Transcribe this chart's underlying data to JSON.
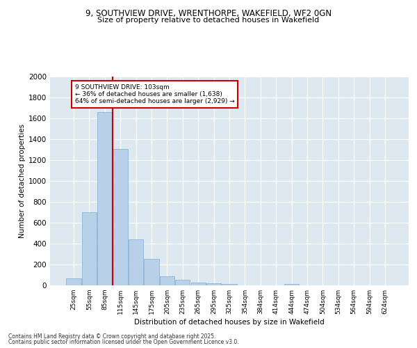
{
  "title_line1": "9, SOUTHVIEW DRIVE, WRENTHORPE, WAKEFIELD, WF2 0GN",
  "title_line2": "Size of property relative to detached houses in Wakefield",
  "xlabel": "Distribution of detached houses by size in Wakefield",
  "ylabel": "Number of detached properties",
  "categories": [
    "25sqm",
    "55sqm",
    "85sqm",
    "115sqm",
    "145sqm",
    "175sqm",
    "205sqm",
    "235sqm",
    "265sqm",
    "295sqm",
    "325sqm",
    "354sqm",
    "384sqm",
    "414sqm",
    "444sqm",
    "474sqm",
    "504sqm",
    "534sqm",
    "564sqm",
    "594sqm",
    "624sqm"
  ],
  "values": [
    65,
    700,
    1660,
    1310,
    440,
    255,
    90,
    55,
    30,
    22,
    15,
    0,
    0,
    0,
    12,
    0,
    0,
    0,
    0,
    0,
    0
  ],
  "bar_color": "#b8d0e8",
  "bar_edge_color": "#7aadd4",
  "annotation_text": "9 SOUTHVIEW DRIVE: 103sqm\n← 36% of detached houses are smaller (1,638)\n64% of semi-detached houses are larger (2,929) →",
  "annotation_box_color": "#ffffff",
  "annotation_box_edge": "#cc0000",
  "vline_color": "#cc0000",
  "ylim": [
    0,
    2000
  ],
  "yticks": [
    0,
    200,
    400,
    600,
    800,
    1000,
    1200,
    1400,
    1600,
    1800,
    2000
  ],
  "background_color": "#dde8f0",
  "footer_line1": "Contains HM Land Registry data © Crown copyright and database right 2025.",
  "footer_line2": "Contains public sector information licensed under the Open Government Licence v3.0."
}
